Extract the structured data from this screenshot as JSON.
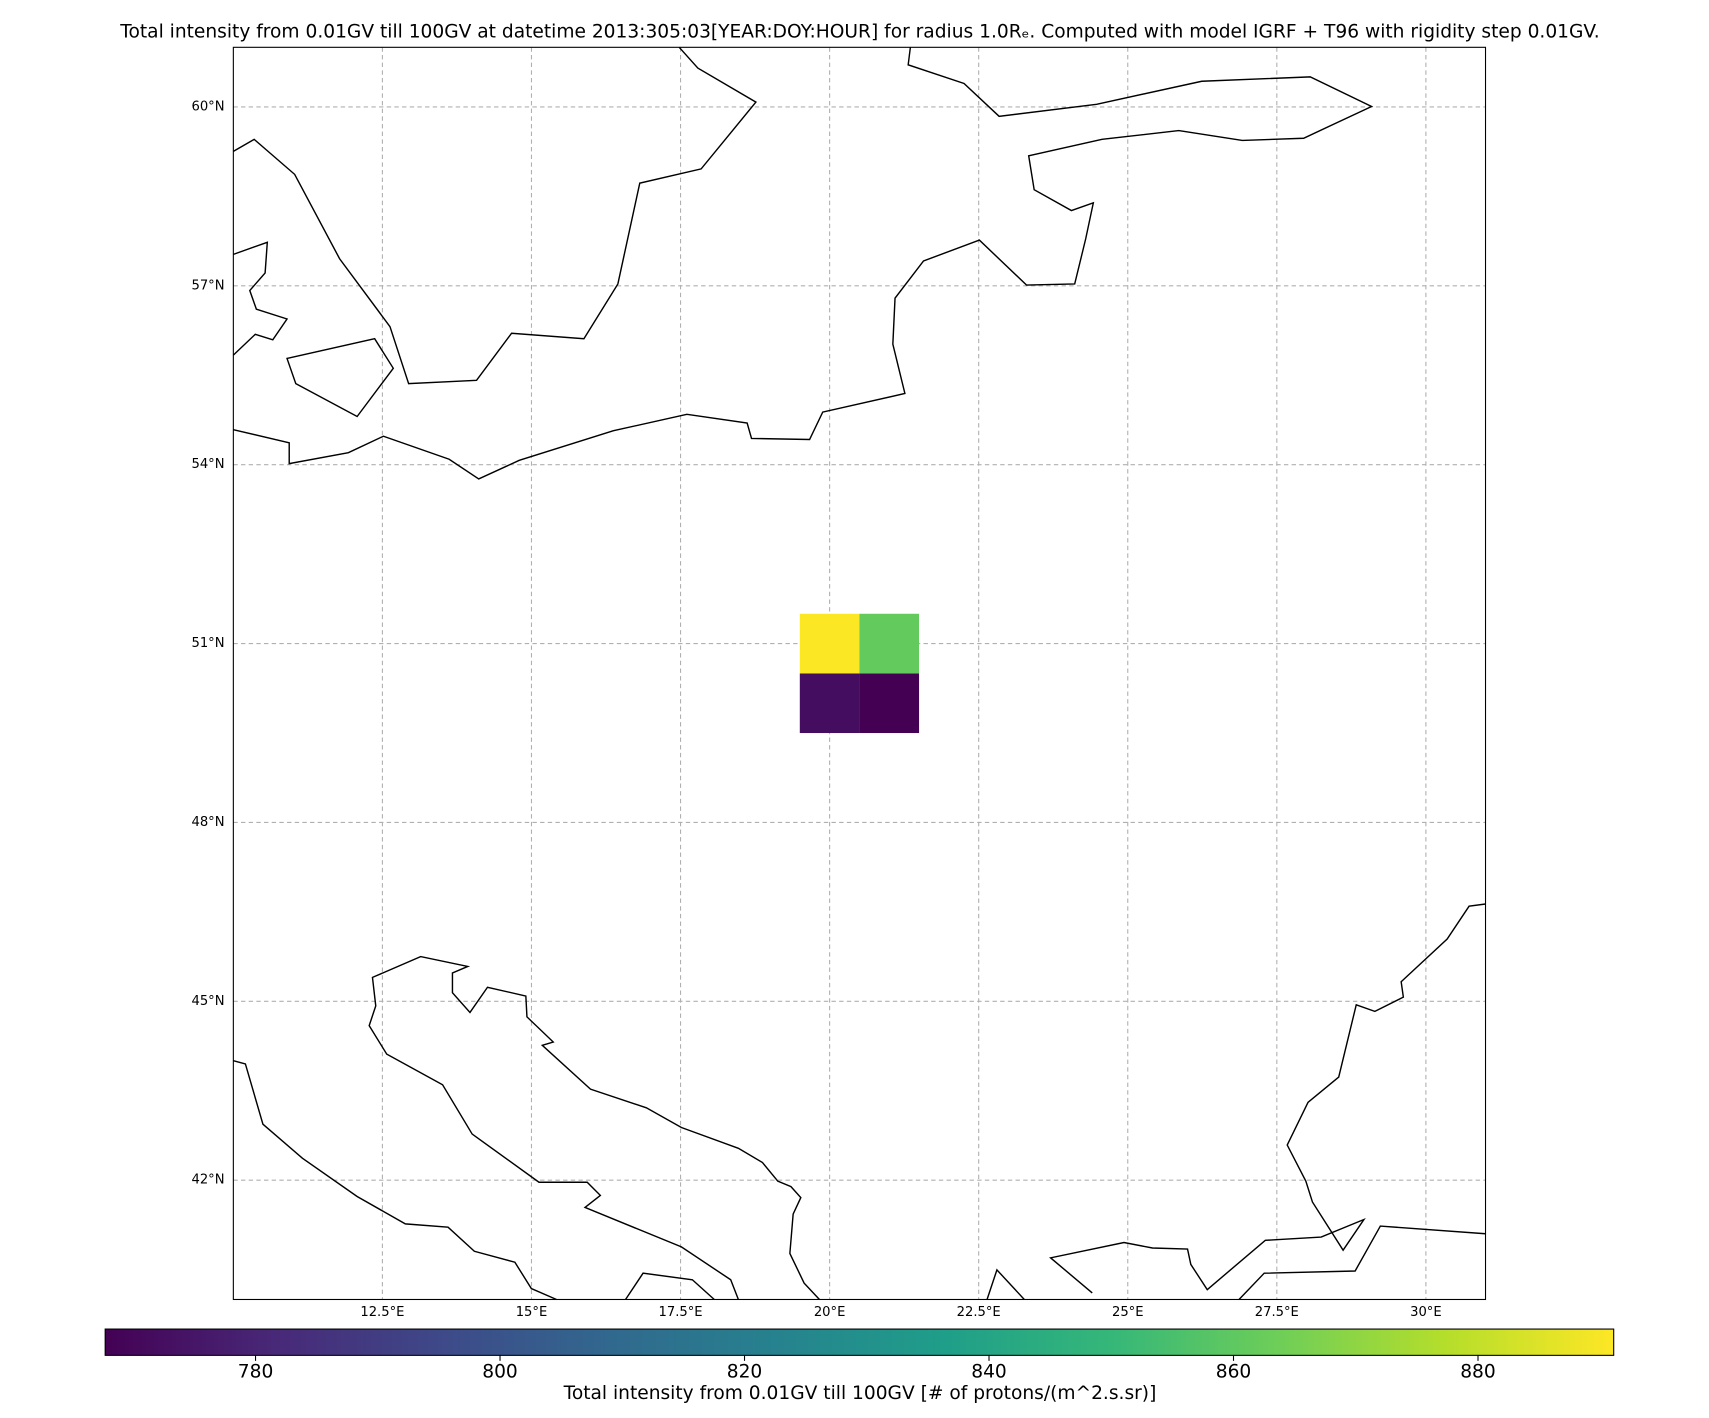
{
  "chart_data": {
    "type": "heatmap",
    "title": "Total intensity from 0.01GV till 100GV at datetime 2013:305:03[YEAR:DOY:HOUR] for radius 1.0Rₑ. Computed with model IGRF + T96 with rigidity step 0.01GV.",
    "x": [
      20,
      21
    ],
    "y": [
      50,
      51
    ],
    "values": [
      [
        772,
        767.7
      ],
      [
        891,
        861
      ]
    ],
    "colormap": "viridis",
    "xlim": [
      10,
      31
    ],
    "ylim": [
      40,
      61
    ],
    "xticks": [
      {
        "value": 12.5,
        "label": "12.5°E"
      },
      {
        "value": 15,
        "label": "15°E"
      },
      {
        "value": 17.5,
        "label": "17.5°E"
      },
      {
        "value": 20,
        "label": "20°E"
      },
      {
        "value": 22.5,
        "label": "22.5°E"
      },
      {
        "value": 25,
        "label": "25°E"
      },
      {
        "value": 27.5,
        "label": "27.5°E"
      },
      {
        "value": 30,
        "label": "30°E"
      }
    ],
    "yticks": [
      {
        "value": 42,
        "label": "42°N"
      },
      {
        "value": 45,
        "label": "45°N"
      },
      {
        "value": 48,
        "label": "48°N"
      },
      {
        "value": 51,
        "label": "51°N"
      },
      {
        "value": 54,
        "label": "54°N"
      },
      {
        "value": 57,
        "label": "57°N"
      },
      {
        "value": 60,
        "label": "60°N"
      }
    ],
    "grid": true,
    "clim": [
      767.7,
      891.1
    ],
    "cticks": [
      780,
      800,
      820,
      840,
      860,
      880
    ],
    "colorbar_label": "Total intensity from 0.01GV till 100GV [# of protons/(m^2.s.sr)]"
  }
}
